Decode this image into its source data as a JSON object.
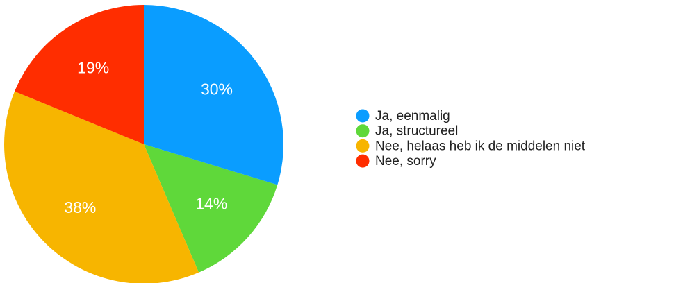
{
  "chart_data": {
    "type": "pie",
    "categories": [
      "Ja, eenmalig",
      "Ja, structureel",
      "Nee, helaas heb ik de middelen niet",
      "Nee, sorry"
    ],
    "values": [
      30,
      14,
      38,
      19
    ],
    "value_labels": [
      "30%",
      "14%",
      "38%",
      "19%"
    ],
    "colors": [
      "#0a9dff",
      "#5fd83a",
      "#f7b500",
      "#ff2d00"
    ],
    "legend": "right"
  }
}
